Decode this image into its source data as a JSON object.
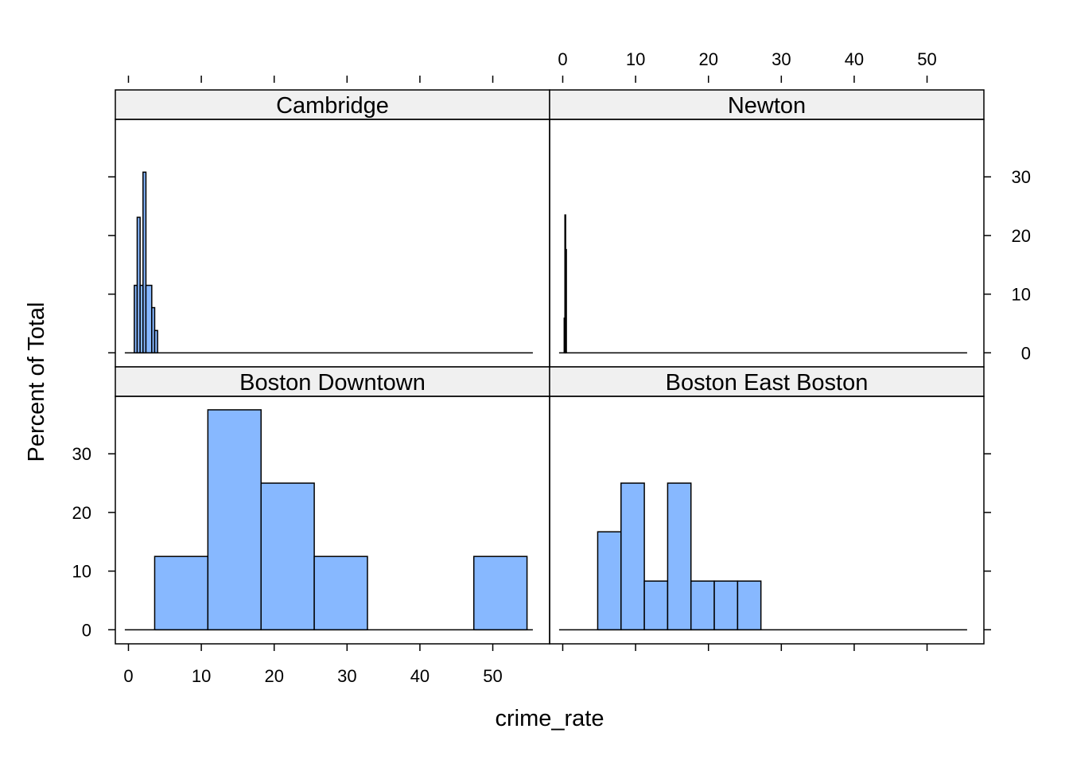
{
  "chart_data": {
    "type": "histogram",
    "layout": "2x2 lattice",
    "xlabel": "crime_rate",
    "ylabel": "Percent of Total",
    "xlim": [
      -1.8,
      57.8
    ],
    "ylim": [
      -2.4,
      39.8
    ],
    "x_ticks": [
      0,
      10,
      20,
      30,
      40,
      50
    ],
    "y_ticks": [
      0,
      10,
      20,
      30
    ],
    "bar_fill": "#87B8FF",
    "strip_fill": "#F0F0F0",
    "panels": [
      {
        "name": "Cambridge",
        "baseline": [
          -0.5,
          55.5
        ],
        "bins": [
          {
            "x0": 0.8,
            "x1": 1.2,
            "y": 11.5
          },
          {
            "x0": 1.2,
            "x1": 1.6,
            "y": 23.1
          },
          {
            "x0": 1.6,
            "x1": 2.0,
            "y": 11.5
          },
          {
            "x0": 2.0,
            "x1": 2.4,
            "y": 30.8
          },
          {
            "x0": 2.4,
            "x1": 3.2,
            "y": 11.5
          },
          {
            "x0": 3.2,
            "x1": 3.6,
            "y": 7.7
          },
          {
            "x0": 3.6,
            "x1": 4.0,
            "y": 3.8
          }
        ]
      },
      {
        "name": "Newton",
        "baseline": [
          -0.5,
          55.5
        ],
        "bins": [
          {
            "x0": 0.2,
            "x1": 0.3,
            "y": 5.9
          },
          {
            "x0": 0.3,
            "x1": 0.4,
            "y": 23.5
          },
          {
            "x0": 0.4,
            "x1": 0.5,
            "y": 17.6
          }
        ]
      },
      {
        "name": "Boston Downtown",
        "baseline": [
          -0.5,
          55.5
        ],
        "bins": [
          {
            "x0": 3.6,
            "x1": 10.9,
            "y": 12.5
          },
          {
            "x0": 10.9,
            "x1": 18.2,
            "y": 37.5
          },
          {
            "x0": 18.2,
            "x1": 25.5,
            "y": 25.0
          },
          {
            "x0": 25.5,
            "x1": 32.8,
            "y": 12.5
          },
          {
            "x0": 32.8,
            "x1": 40.1,
            "y": 0
          },
          {
            "x0": 40.1,
            "x1": 47.4,
            "y": 0
          },
          {
            "x0": 47.4,
            "x1": 54.7,
            "y": 12.5
          }
        ]
      },
      {
        "name": "Boston East Boston",
        "baseline": [
          -0.5,
          55.5
        ],
        "bins": [
          {
            "x0": 4.8,
            "x1": 8.0,
            "y": 16.7
          },
          {
            "x0": 8.0,
            "x1": 11.2,
            "y": 25.0
          },
          {
            "x0": 11.2,
            "x1": 14.4,
            "y": 8.3
          },
          {
            "x0": 14.4,
            "x1": 17.6,
            "y": 25.0
          },
          {
            "x0": 17.6,
            "x1": 20.8,
            "y": 8.3
          },
          {
            "x0": 20.8,
            "x1": 24.0,
            "y": 8.3
          },
          {
            "x0": 24.0,
            "x1": 27.2,
            "y": 8.3
          }
        ]
      }
    ]
  }
}
